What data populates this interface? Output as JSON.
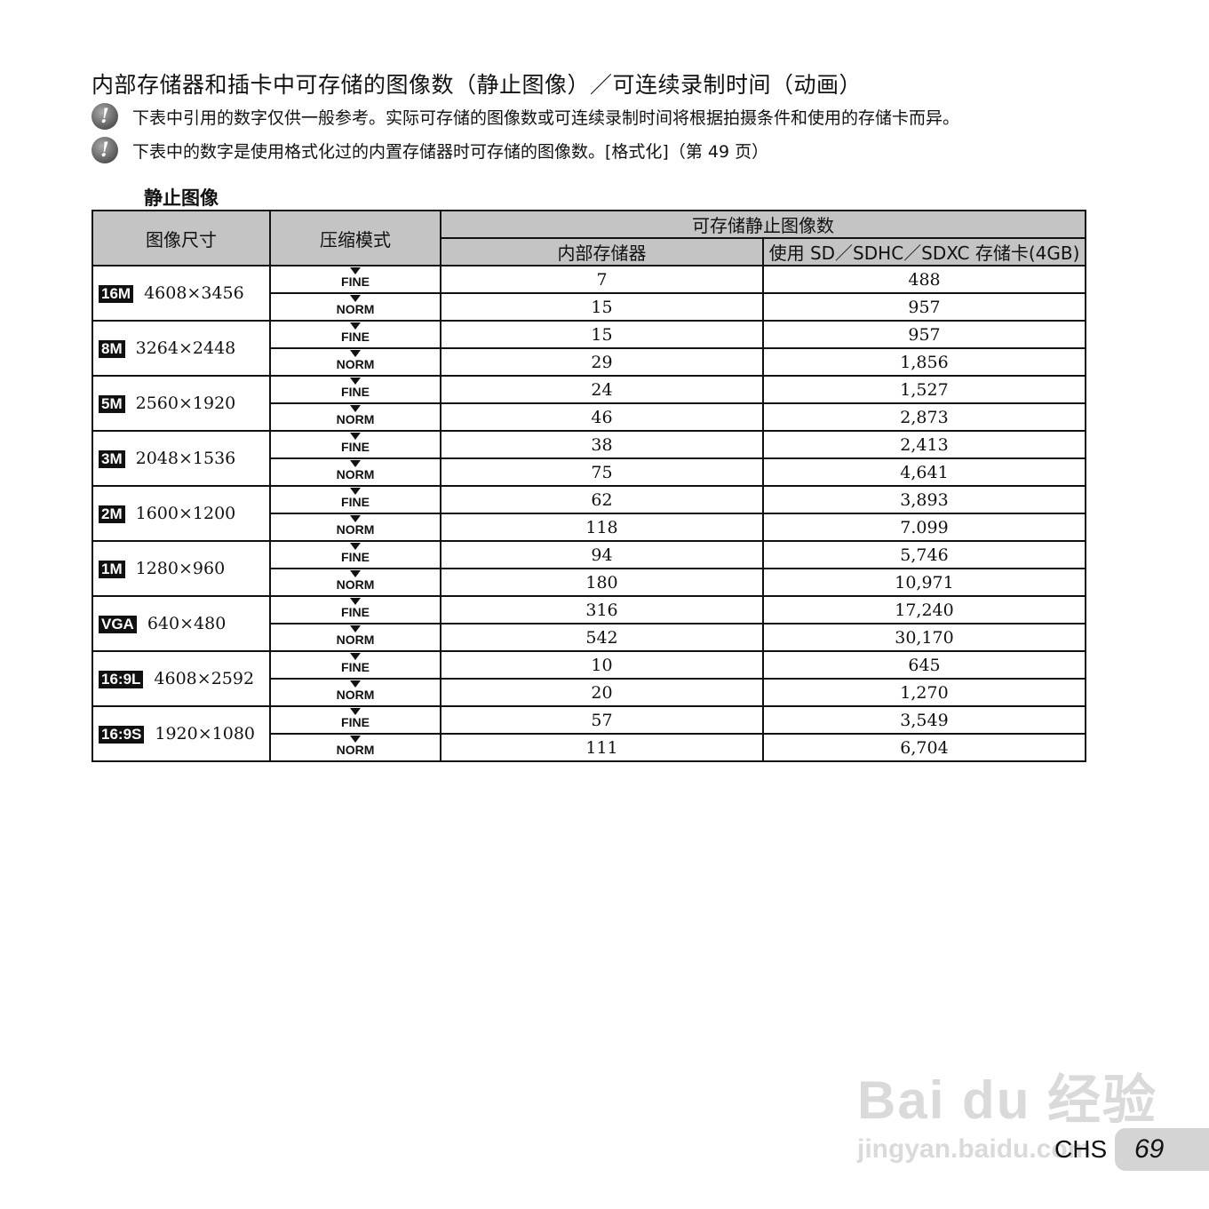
{
  "title": "内部存储器和插卡中可存储的图像数（静止图像）／可连续录制时间（动画）",
  "notes": [
    "下表中引用的数字仅供一般参考。实际可存储的图像数或可连续录制时间将根据拍摄条件和使用的存储卡而异。",
    "下表中的数字是使用格式化过的内置存储器时可存储的图像数。[格式化]（第 49 页）"
  ],
  "note_icon": "caution-icon",
  "subtitle": "静止图像",
  "table": {
    "headers": {
      "size": "图像尺寸",
      "compression": "压缩模式",
      "count": "可存储静止图像数",
      "internal": "内部存储器",
      "card": "使用 SD／SDHC／SDXC 存储卡(4GB)"
    },
    "quality": {
      "fine": "FINE",
      "norm": "NORM"
    },
    "rows": [
      {
        "badge": "16M",
        "size": "4608×3456",
        "fine": [
          "7",
          "488"
        ],
        "norm": [
          "15",
          "957"
        ]
      },
      {
        "badge": "8M",
        "size": "3264×2448",
        "fine": [
          "15",
          "957"
        ],
        "norm": [
          "29",
          "1,856"
        ]
      },
      {
        "badge": "5M",
        "size": "2560×1920",
        "fine": [
          "24",
          "1,527"
        ],
        "norm": [
          "46",
          "2,873"
        ]
      },
      {
        "badge": "3M",
        "size": "2048×1536",
        "fine": [
          "38",
          "2,413"
        ],
        "norm": [
          "75",
          "4,641"
        ]
      },
      {
        "badge": "2M",
        "size": "1600×1200",
        "fine": [
          "62",
          "3,893"
        ],
        "norm": [
          "118",
          "7.099"
        ]
      },
      {
        "badge": "1M",
        "size": "1280×960",
        "fine": [
          "94",
          "5,746"
        ],
        "norm": [
          "180",
          "10,971"
        ]
      },
      {
        "badge": "VGA",
        "size": "640×480",
        "fine": [
          "316",
          "17,240"
        ],
        "norm": [
          "542",
          "30,170"
        ]
      },
      {
        "badge": "16:9L",
        "size": "4608×2592",
        "fine": [
          "10",
          "645"
        ],
        "norm": [
          "20",
          "1,270"
        ]
      },
      {
        "badge": "16:9S",
        "size": "1920×1080",
        "fine": [
          "57",
          "3,549"
        ],
        "norm": [
          "111",
          "6,704"
        ]
      }
    ]
  },
  "footer": {
    "lang": "CHS",
    "page": "69"
  },
  "watermark": {
    "logo": "Bai du 经验",
    "url": "jingyan.baidu.com"
  }
}
